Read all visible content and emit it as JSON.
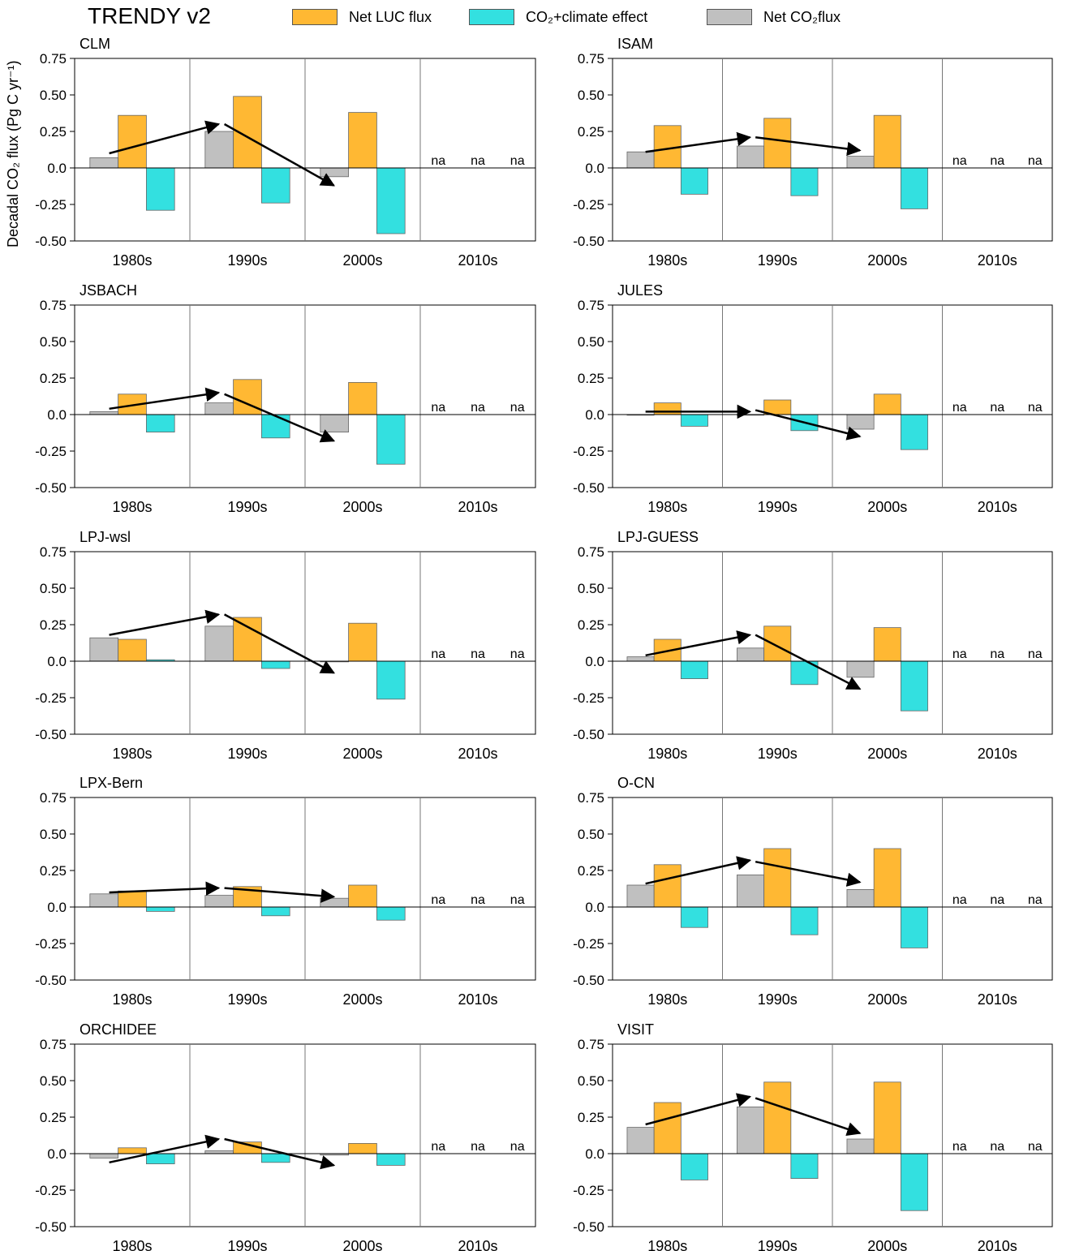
{
  "figure": {
    "title": "TRENDY v2",
    "ylabel": "Decadal CO₂ flux  (Pg C yr⁻¹)",
    "legend": [
      {
        "name": "Net LUC flux",
        "color": "#ffb833"
      },
      {
        "name": "CO₂+climate effect",
        "color": "#33e0e0"
      },
      {
        "name": "Net CO₂flux",
        "color": "#c0c0c0"
      }
    ]
  },
  "chart_data": [
    {
      "type": "bar",
      "title": "CLM",
      "categories": [
        "1980s",
        "1990s",
        "2000s",
        "2010s"
      ],
      "ylim": [
        -0.5,
        0.75
      ],
      "yticks": [
        "0.75",
        "0.50",
        "0.25",
        "0.0",
        "-0.25",
        "-0.50"
      ],
      "series": [
        {
          "name": "Net CO₂flux",
          "values": [
            0.07,
            0.25,
            -0.06,
            null
          ]
        },
        {
          "name": "Net LUC flux",
          "values": [
            0.36,
            0.49,
            0.38,
            null
          ]
        },
        {
          "name": "CO₂+climate effect",
          "values": [
            -0.29,
            -0.24,
            -0.45,
            null
          ]
        }
      ],
      "arrows": [
        [
          0.1,
          0.3
        ],
        [
          0.3,
          -0.12
        ]
      ],
      "na": [
        "na",
        "na",
        "na"
      ]
    },
    {
      "type": "bar",
      "title": "ISAM",
      "categories": [
        "1980s",
        "1990s",
        "2000s",
        "2010s"
      ],
      "ylim": [
        -0.5,
        0.75
      ],
      "yticks": [
        "0.75",
        "0.50",
        "0.25",
        "0.0",
        "-0.25",
        "-0.50"
      ],
      "series": [
        {
          "name": "Net CO₂flux",
          "values": [
            0.11,
            0.15,
            0.08,
            null
          ]
        },
        {
          "name": "Net LUC flux",
          "values": [
            0.29,
            0.34,
            0.36,
            null
          ]
        },
        {
          "name": "CO₂+climate effect",
          "values": [
            -0.18,
            -0.19,
            -0.28,
            null
          ]
        }
      ],
      "arrows": [
        [
          0.11,
          0.21
        ],
        [
          0.21,
          0.12
        ]
      ],
      "na": [
        "na",
        "na",
        "na"
      ]
    },
    {
      "type": "bar",
      "title": "JSBACH",
      "categories": [
        "1980s",
        "1990s",
        "2000s",
        "2010s"
      ],
      "ylim": [
        -0.5,
        0.75
      ],
      "yticks": [
        "0.75",
        "0.50",
        "0.25",
        "0.0",
        "-0.25",
        "-0.50"
      ],
      "series": [
        {
          "name": "Net CO₂flux",
          "values": [
            0.02,
            0.08,
            -0.12,
            null
          ]
        },
        {
          "name": "Net LUC flux",
          "values": [
            0.14,
            0.24,
            0.22,
            null
          ]
        },
        {
          "name": "CO₂+climate effect",
          "values": [
            -0.12,
            -0.16,
            -0.34,
            null
          ]
        }
      ],
      "arrows": [
        [
          0.04,
          0.15
        ],
        [
          0.14,
          -0.18
        ]
      ],
      "na": [
        "na",
        "na",
        "na"
      ]
    },
    {
      "type": "bar",
      "title": "JULES",
      "categories": [
        "1980s",
        "1990s",
        "2000s",
        "2010s"
      ],
      "ylim": [
        -0.5,
        0.75
      ],
      "yticks": [
        "0.75",
        "0.50",
        "0.25",
        "0.0",
        "-0.25",
        "-0.50"
      ],
      "series": [
        {
          "name": "Net CO₂flux",
          "values": [
            0.0,
            0.0,
            -0.1,
            null
          ]
        },
        {
          "name": "Net LUC flux",
          "values": [
            0.08,
            0.1,
            0.14,
            null
          ]
        },
        {
          "name": "CO₂+climate effect",
          "values": [
            -0.08,
            -0.11,
            -0.24,
            null
          ]
        }
      ],
      "arrows": [
        [
          0.02,
          0.02
        ],
        [
          0.03,
          -0.15
        ]
      ],
      "na": [
        "na",
        "na",
        "na"
      ]
    },
    {
      "type": "bar",
      "title": "LPJ-wsl",
      "categories": [
        "1980s",
        "1990s",
        "2000s",
        "2010s"
      ],
      "ylim": [
        -0.5,
        0.75
      ],
      "yticks": [
        "0.75",
        "0.50",
        "0.25",
        "0.0",
        "-0.25",
        "-0.50"
      ],
      "series": [
        {
          "name": "Net CO₂flux",
          "values": [
            0.16,
            0.24,
            0.0,
            null
          ]
        },
        {
          "name": "Net LUC flux",
          "values": [
            0.15,
            0.3,
            0.26,
            null
          ]
        },
        {
          "name": "CO₂+climate effect",
          "values": [
            0.01,
            -0.05,
            -0.26,
            null
          ]
        }
      ],
      "arrows": [
        [
          0.18,
          0.32
        ],
        [
          0.32,
          -0.08
        ]
      ],
      "na": [
        "na",
        "na",
        "na"
      ]
    },
    {
      "type": "bar",
      "title": "LPJ-GUESS",
      "categories": [
        "1980s",
        "1990s",
        "2000s",
        "2010s"
      ],
      "ylim": [
        -0.5,
        0.75
      ],
      "yticks": [
        "0.75",
        "0.50",
        "0.25",
        "0.0",
        "-0.25",
        "-0.50"
      ],
      "series": [
        {
          "name": "Net CO₂flux",
          "values": [
            0.03,
            0.09,
            -0.11,
            null
          ]
        },
        {
          "name": "Net LUC flux",
          "values": [
            0.15,
            0.24,
            0.23,
            null
          ]
        },
        {
          "name": "CO₂+climate effect",
          "values": [
            -0.12,
            -0.16,
            -0.34,
            null
          ]
        }
      ],
      "arrows": [
        [
          0.04,
          0.18
        ],
        [
          0.18,
          -0.19
        ]
      ],
      "na": [
        "na",
        "na",
        "na"
      ]
    },
    {
      "type": "bar",
      "title": "LPX-Bern",
      "categories": [
        "1980s",
        "1990s",
        "2000s",
        "2010s"
      ],
      "ylim": [
        -0.5,
        0.75
      ],
      "yticks": [
        "0.75",
        "0.50",
        "0.25",
        "0.0",
        "-0.25",
        "-0.50"
      ],
      "series": [
        {
          "name": "Net CO₂flux",
          "values": [
            0.09,
            0.08,
            0.06,
            null
          ]
        },
        {
          "name": "Net LUC flux",
          "values": [
            0.11,
            0.14,
            0.15,
            null
          ]
        },
        {
          "name": "CO₂+climate effect",
          "values": [
            -0.03,
            -0.06,
            -0.09,
            null
          ]
        }
      ],
      "arrows": [
        [
          0.1,
          0.13
        ],
        [
          0.13,
          0.07
        ]
      ],
      "na": [
        "na",
        "na",
        "na"
      ]
    },
    {
      "type": "bar",
      "title": "O-CN",
      "categories": [
        "1980s",
        "1990s",
        "2000s",
        "2010s"
      ],
      "ylim": [
        -0.5,
        0.75
      ],
      "yticks": [
        "0.75",
        "0.50",
        "0.25",
        "0.0",
        "-0.25",
        "-0.50"
      ],
      "series": [
        {
          "name": "Net CO₂flux",
          "values": [
            0.15,
            0.22,
            0.12,
            null
          ]
        },
        {
          "name": "Net LUC flux",
          "values": [
            0.29,
            0.4,
            0.4,
            null
          ]
        },
        {
          "name": "CO₂+climate effect",
          "values": [
            -0.14,
            -0.19,
            -0.28,
            null
          ]
        }
      ],
      "arrows": [
        [
          0.16,
          0.32
        ],
        [
          0.31,
          0.17
        ]
      ],
      "na": [
        "na",
        "na",
        "na"
      ]
    },
    {
      "type": "bar",
      "title": "ORCHIDEE",
      "categories": [
        "1980s",
        "1990s",
        "2000s",
        "2010s"
      ],
      "ylim": [
        -0.5,
        0.75
      ],
      "yticks": [
        "0.75",
        "0.50",
        "0.25",
        "0.0",
        "-0.25",
        "-0.50"
      ],
      "series": [
        {
          "name": "Net CO₂flux",
          "values": [
            -0.03,
            0.02,
            -0.01,
            null
          ]
        },
        {
          "name": "Net LUC flux",
          "values": [
            0.04,
            0.08,
            0.07,
            null
          ]
        },
        {
          "name": "CO₂+climate effect",
          "values": [
            -0.07,
            -0.06,
            -0.08,
            null
          ]
        }
      ],
      "arrows": [
        [
          -0.06,
          0.1
        ],
        [
          0.1,
          -0.08
        ]
      ],
      "na": [
        "na",
        "na",
        "na"
      ]
    },
    {
      "type": "bar",
      "title": "VISIT",
      "categories": [
        "1980s",
        "1990s",
        "2000s",
        "2010s"
      ],
      "ylim": [
        -0.5,
        0.75
      ],
      "yticks": [
        "0.75",
        "0.50",
        "0.25",
        "0.0",
        "-0.25",
        "-0.50"
      ],
      "series": [
        {
          "name": "Net CO₂flux",
          "values": [
            0.18,
            0.32,
            0.1,
            null
          ]
        },
        {
          "name": "Net LUC flux",
          "values": [
            0.35,
            0.49,
            0.49,
            null
          ]
        },
        {
          "name": "CO₂+climate effect",
          "values": [
            -0.18,
            -0.17,
            -0.39,
            null
          ]
        }
      ],
      "arrows": [
        [
          0.2,
          0.39
        ],
        [
          0.38,
          0.14
        ]
      ],
      "na": [
        "na",
        "na",
        "na"
      ]
    }
  ]
}
